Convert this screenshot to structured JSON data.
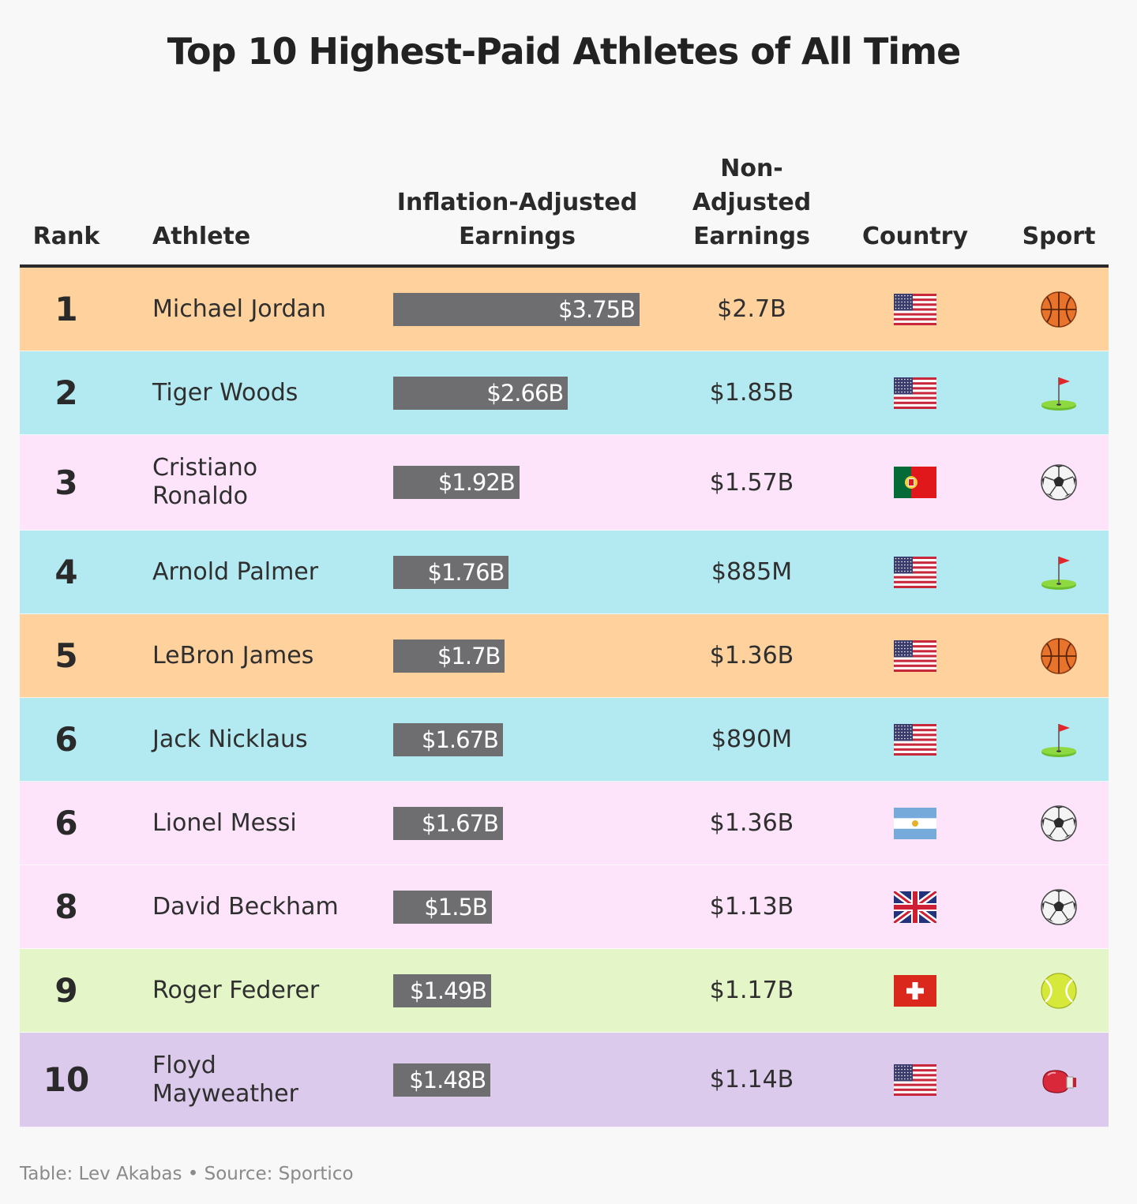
{
  "title": "Top 10 Highest-Paid Athletes of All Time",
  "headers": {
    "rank": "Rank",
    "athlete": "Athlete",
    "inflation_line1": "Inflation-Adjusted",
    "inflation_line2": "Earnings",
    "nonadj_line1": "Non-",
    "nonadj_line2": "Adjusted",
    "nonadj_line3": "Earnings",
    "country": "Country",
    "sport": "Sport"
  },
  "footer": "Table: Lev Akabas • Source: Sportico",
  "colors": {
    "bar": "#6e6e70",
    "basketball": "#ffd29d",
    "golf": "#b3e9f1",
    "soccer": "#fde4fb",
    "tennis": "#e4f5c8",
    "boxing": "#dccaec"
  },
  "chart_data": {
    "type": "table",
    "columns": [
      "Rank",
      "Athlete",
      "Inflation-Adjusted Earnings",
      "Non-Adjusted Earnings",
      "Country",
      "Sport"
    ],
    "bar_max_billions": 3.75,
    "rows": [
      {
        "rank": "1",
        "athlete_lines": [
          "Michael Jordan"
        ],
        "inflation_adjusted": "$3.75B",
        "inflation_adjusted_billions": 3.75,
        "non_adjusted": "$2.7B",
        "country": "USA",
        "flag_icon": "usa-flag-icon",
        "sport": "basketball",
        "sport_icon": "basketball-icon"
      },
      {
        "rank": "2",
        "athlete_lines": [
          "Tiger Woods"
        ],
        "inflation_adjusted": "$2.66B",
        "inflation_adjusted_billions": 2.66,
        "non_adjusted": "$1.85B",
        "country": "USA",
        "flag_icon": "usa-flag-icon",
        "sport": "golf",
        "sport_icon": "golf-flag-icon"
      },
      {
        "rank": "3",
        "athlete_lines": [
          "Cristiano",
          "Ronaldo"
        ],
        "inflation_adjusted": "$1.92B",
        "inflation_adjusted_billions": 1.92,
        "non_adjusted": "$1.57B",
        "country": "Portugal",
        "flag_icon": "portugal-flag-icon",
        "sport": "soccer",
        "sport_icon": "soccer-ball-icon"
      },
      {
        "rank": "4",
        "athlete_lines": [
          "Arnold Palmer"
        ],
        "inflation_adjusted": "$1.76B",
        "inflation_adjusted_billions": 1.76,
        "non_adjusted": "$885M",
        "country": "USA",
        "flag_icon": "usa-flag-icon",
        "sport": "golf",
        "sport_icon": "golf-flag-icon"
      },
      {
        "rank": "5",
        "athlete_lines": [
          "LeBron James"
        ],
        "inflation_adjusted": "$1.7B",
        "inflation_adjusted_billions": 1.7,
        "non_adjusted": "$1.36B",
        "country": "USA",
        "flag_icon": "usa-flag-icon",
        "sport": "basketball",
        "sport_icon": "basketball-icon"
      },
      {
        "rank": "6",
        "athlete_lines": [
          "Jack Nicklaus"
        ],
        "inflation_adjusted": "$1.67B",
        "inflation_adjusted_billions": 1.67,
        "non_adjusted": "$890M",
        "country": "USA",
        "flag_icon": "usa-flag-icon",
        "sport": "golf",
        "sport_icon": "golf-flag-icon"
      },
      {
        "rank": "6",
        "athlete_lines": [
          "Lionel Messi"
        ],
        "inflation_adjusted": "$1.67B",
        "inflation_adjusted_billions": 1.67,
        "non_adjusted": "$1.36B",
        "country": "Argentina",
        "flag_icon": "argentina-flag-icon",
        "sport": "soccer",
        "sport_icon": "soccer-ball-icon"
      },
      {
        "rank": "8",
        "athlete_lines": [
          "David Beckham"
        ],
        "inflation_adjusted": "$1.5B",
        "inflation_adjusted_billions": 1.5,
        "non_adjusted": "$1.13B",
        "country": "UK",
        "flag_icon": "uk-flag-icon",
        "sport": "soccer",
        "sport_icon": "soccer-ball-icon"
      },
      {
        "rank": "9",
        "athlete_lines": [
          "Roger Federer"
        ],
        "inflation_adjusted": "$1.49B",
        "inflation_adjusted_billions": 1.49,
        "non_adjusted": "$1.17B",
        "country": "Switzerland",
        "flag_icon": "switzerland-flag-icon",
        "sport": "tennis",
        "sport_icon": "tennis-ball-icon"
      },
      {
        "rank": "10",
        "athlete_lines": [
          "Floyd",
          "Mayweather"
        ],
        "inflation_adjusted": "$1.48B",
        "inflation_adjusted_billions": 1.48,
        "non_adjusted": "$1.14B",
        "country": "USA",
        "flag_icon": "usa-flag-icon",
        "sport": "boxing",
        "sport_icon": "boxing-glove-icon"
      }
    ]
  }
}
